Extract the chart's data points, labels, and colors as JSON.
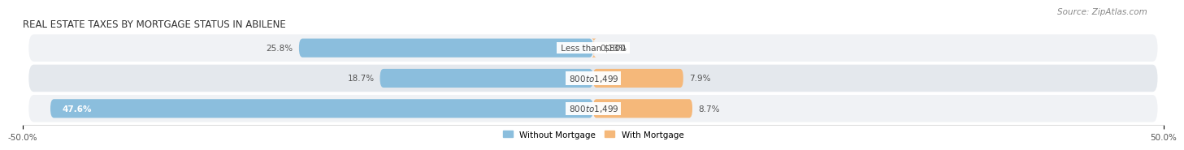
{
  "title": "REAL ESTATE TAXES BY MORTGAGE STATUS IN ABILENE",
  "source": "Source: ZipAtlas.com",
  "categories": [
    "Less than $800",
    "$800 to $1,499",
    "$800 to $1,499"
  ],
  "without_mortgage": [
    25.8,
    18.7,
    47.6
  ],
  "with_mortgage": [
    0.13,
    7.9,
    8.7
  ],
  "bar_color_left": "#8bbedd",
  "bar_color_right": "#f5b87a",
  "bar_height": 0.62,
  "xlim": [
    -50,
    50
  ],
  "xtick_left": "-50.0%",
  "xtick_right": "50.0%",
  "legend_labels": [
    "Without Mortgage",
    "With Mortgage"
  ],
  "title_fontsize": 8.5,
  "source_fontsize": 7.5,
  "value_fontsize": 7.5,
  "category_fontsize": 7.5,
  "row_bg_color_odd": "#f0f2f5",
  "row_bg_color_even": "#e4e8ed",
  "bar_text_white": "#ffffff",
  "bar_text_dark": "#555555",
  "highlight_row": 2
}
